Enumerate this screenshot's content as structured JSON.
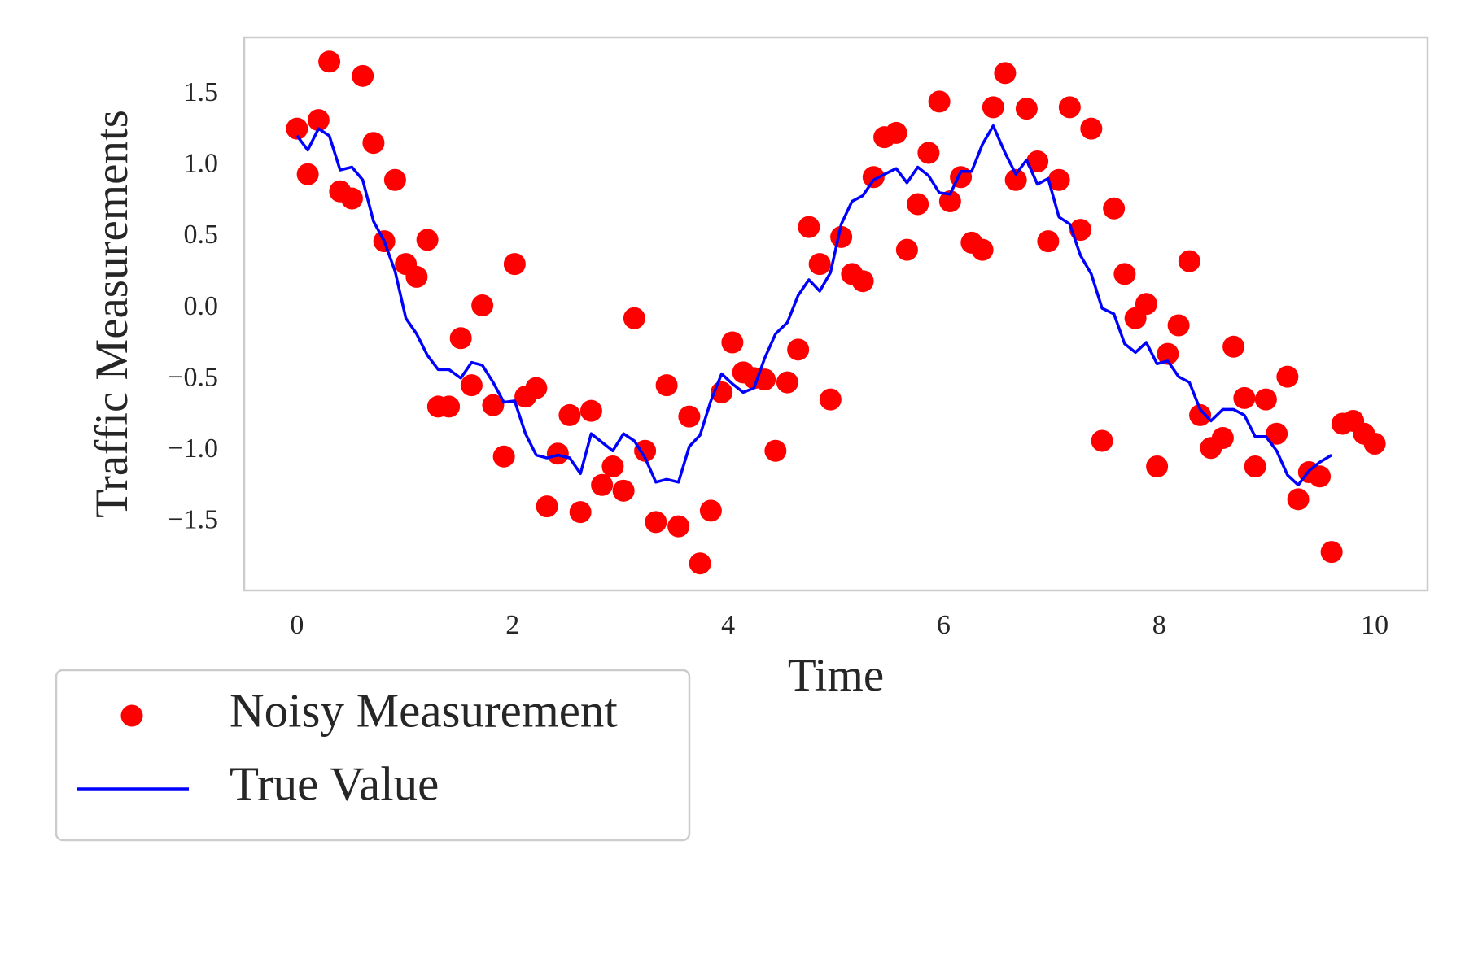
{
  "chart_data": {
    "type": "scatter",
    "xlabel": "Time",
    "ylabel": "Traffic Measurements",
    "x": [
      0.0,
      0.1,
      0.2,
      0.3,
      0.4,
      0.51,
      0.61,
      0.71,
      0.81,
      0.91,
      1.01,
      1.11,
      1.21,
      1.31,
      1.41,
      1.52,
      1.62,
      1.72,
      1.82,
      1.92,
      2.02,
      2.12,
      2.22,
      2.32,
      2.42,
      2.53,
      2.63,
      2.73,
      2.83,
      2.93,
      3.03,
      3.13,
      3.23,
      3.33,
      3.43,
      3.54,
      3.64,
      3.74,
      3.84,
      3.94,
      4.04,
      4.14,
      4.24,
      4.34,
      4.44,
      4.55,
      4.65,
      4.75,
      4.85,
      4.95,
      5.05,
      5.15,
      5.25,
      5.35,
      5.45,
      5.56,
      5.66,
      5.76,
      5.86,
      5.96,
      6.06,
      6.16,
      6.26,
      6.36,
      6.46,
      6.57,
      6.67,
      6.77,
      6.87,
      6.97,
      7.07,
      7.17,
      7.27,
      7.37,
      7.47,
      7.58,
      7.68,
      7.78,
      7.88,
      7.98,
      8.08,
      8.18,
      8.28,
      8.38,
      8.48,
      8.59,
      8.69,
      8.79,
      8.89,
      8.99,
      9.09,
      9.19,
      9.29,
      9.39,
      9.49,
      9.6,
      9.7,
      9.8,
      9.9,
      10.0
    ],
    "series": [
      {
        "name": "Noisy Measurement",
        "type": "scatter",
        "color": "#ff0000",
        "values": [
          1.26,
          0.94,
          1.32,
          1.73,
          0.82,
          0.77,
          1.63,
          1.16,
          0.47,
          0.9,
          0.31,
          0.22,
          0.48,
          -0.69,
          -0.69,
          -0.21,
          -0.54,
          0.02,
          -0.68,
          -1.04,
          0.31,
          -0.62,
          -0.56,
          -1.39,
          -1.02,
          -0.75,
          -1.43,
          -0.72,
          -1.24,
          -1.11,
          -1.28,
          -0.07,
          -1.0,
          -1.5,
          -0.54,
          -1.53,
          -0.76,
          -1.79,
          -1.42,
          -0.59,
          -0.24,
          -0.45,
          -0.49,
          -0.5,
          -1.0,
          -0.52,
          -0.29,
          0.57,
          0.31,
          -0.64,
          0.5,
          0.24,
          0.19,
          0.92,
          1.2,
          1.23,
          0.41,
          0.73,
          1.09,
          1.45,
          0.75,
          0.92,
          0.46,
          0.41,
          1.41,
          1.65,
          0.9,
          1.4,
          1.03,
          0.47,
          0.9,
          1.41,
          0.55,
          1.26,
          -0.93,
          0.7,
          0.24,
          -0.07,
          0.03,
          -1.11,
          -0.32,
          -0.12,
          0.33,
          -0.75,
          -0.98,
          -0.91,
          -0.27,
          -0.63,
          -1.11,
          -0.64,
          -0.88,
          -0.48,
          -1.34,
          -1.15,
          -1.18,
          -1.71,
          -0.81,
          -0.79,
          -0.88,
          -0.95
        ]
      },
      {
        "name": "True Value",
        "type": "line",
        "color": "#0000ff",
        "values": [
          1.21,
          1.11,
          1.26,
          1.21,
          0.97,
          0.99,
          0.9,
          0.61,
          0.47,
          0.26,
          -0.07,
          -0.18,
          -0.33,
          -0.43,
          -0.43,
          -0.49,
          -0.38,
          -0.4,
          -0.52,
          -0.66,
          -0.65,
          -0.88,
          -1.03,
          -1.05,
          -1.03,
          -1.05,
          -1.16,
          -0.88,
          -0.94,
          -1.0,
          -0.88,
          -0.93,
          -1.05,
          -1.22,
          -1.2,
          -1.22,
          -0.97,
          -0.89,
          -0.65,
          -0.46,
          -0.53,
          -0.59,
          -0.56,
          -0.35,
          -0.18,
          -0.1,
          0.09,
          0.2,
          0.12,
          0.25,
          0.59,
          0.75,
          0.79,
          0.9,
          0.94,
          0.98,
          0.88,
          0.99,
          0.93,
          0.81,
          0.8,
          0.96,
          0.96,
          1.15,
          1.28,
          1.09,
          0.94,
          1.04,
          0.87,
          0.91,
          0.64,
          0.59,
          0.37,
          0.24,
          0.0,
          -0.04,
          -0.25,
          -0.31,
          -0.24,
          -0.39,
          -0.37,
          -0.48,
          -0.52,
          -0.71,
          -0.79,
          -0.71,
          -0.71,
          -0.75,
          -0.9,
          -0.9,
          -1.0,
          -1.17,
          -1.24,
          -1.14,
          -1.08,
          -1.03,
          null,
          null,
          null,
          null
        ]
      }
    ],
    "xlim": [
      -0.49,
      10.49
    ],
    "ylim": [
      -1.98,
      1.9
    ],
    "xticks": [
      0,
      2,
      4,
      6,
      8,
      10
    ],
    "yticks": [
      {
        "value": -1.5,
        "label": "−1.5"
      },
      {
        "value": -1.0,
        "label": "−1.0"
      },
      {
        "value": -0.5,
        "label": "−0.5"
      },
      {
        "value": 0.0,
        "label": "0.0"
      },
      {
        "value": 0.5,
        "label": "0.5"
      },
      {
        "value": 1.0,
        "label": "1.0"
      },
      {
        "value": 1.5,
        "label": "1.5"
      }
    ],
    "grid": false
  }
}
